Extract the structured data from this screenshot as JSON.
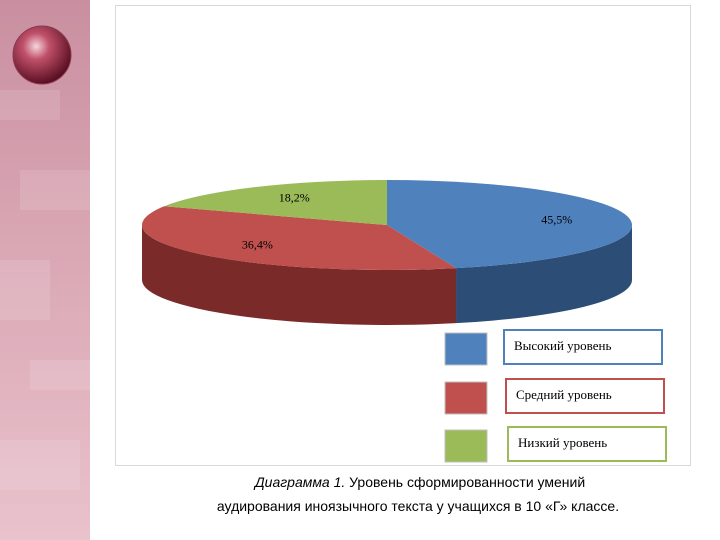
{
  "chart_data": {
    "type": "pie",
    "categories": [
      "Высокий уровень",
      "Средний уровень",
      "Низкий уровень"
    ],
    "values": [
      45.5,
      36.4,
      18.2
    ],
    "value_labels": [
      "45,5%",
      "36,4%",
      "18,2%"
    ],
    "colors": [
      "#4f81bd",
      "#c0504d",
      "#9bbb59"
    ],
    "side_colors": [
      "#2c4d75",
      "#7a2b29",
      "#5f7530"
    ],
    "caption_label": "Диаграмма 1.",
    "caption_line1": "Уровень сформированности умений",
    "caption_line2": "аудирования иноязычного текста у учащихся в 10 «Г» классе."
  }
}
